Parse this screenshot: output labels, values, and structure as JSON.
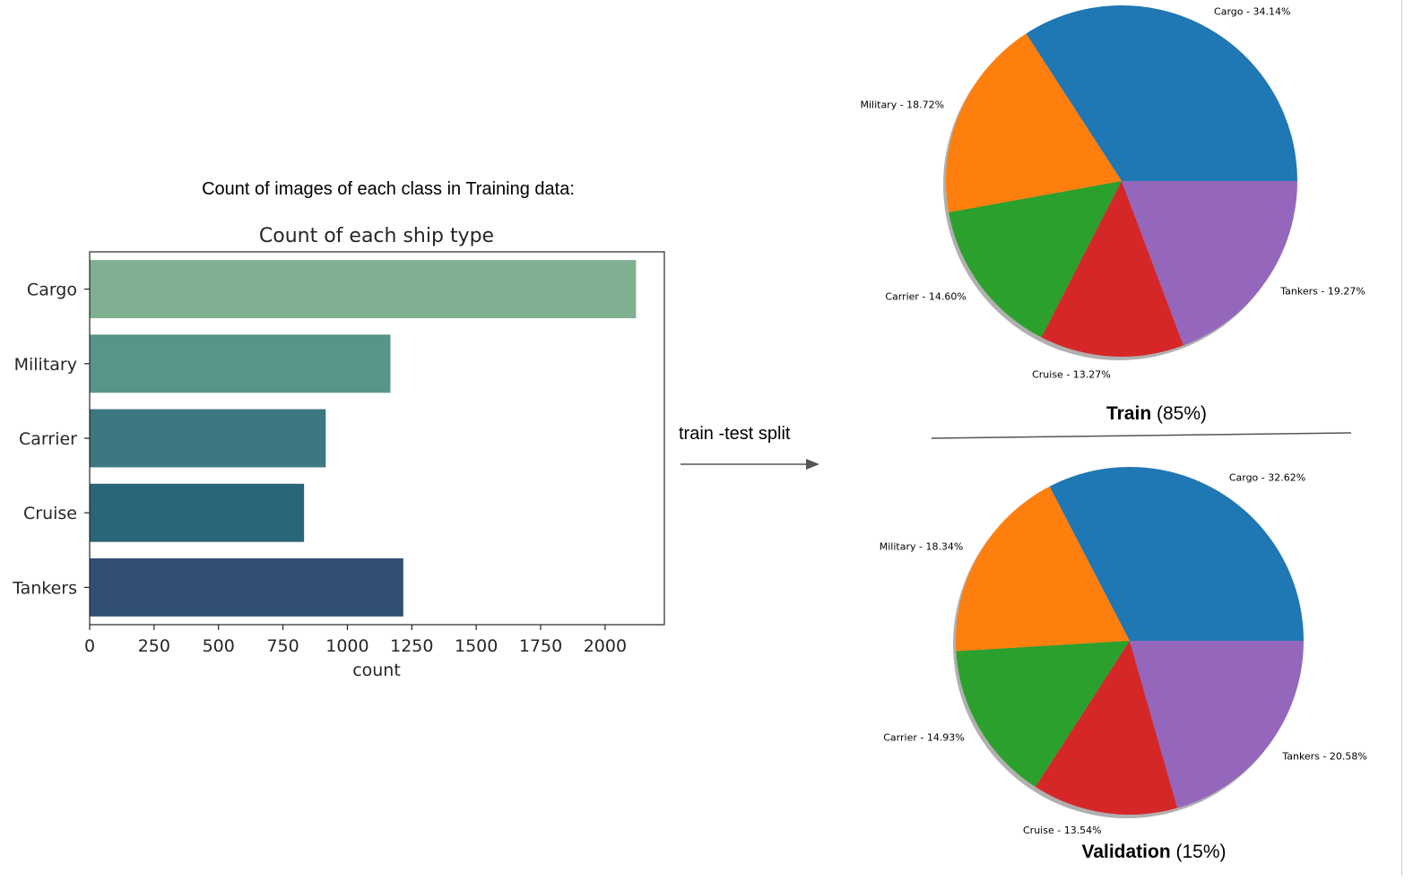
{
  "caption": "Count of images of each class in Training data:",
  "arrow_label": "train -test split",
  "colors": {
    "bars": [
      "#7fb092",
      "#589489",
      "#3d7880",
      "#2b6579",
      "#314f74"
    ],
    "pie": [
      "#1f77b4",
      "#ff7f0e",
      "#2ca02c",
      "#d62728",
      "#9467bd"
    ]
  },
  "chart_data": [
    {
      "type": "bar",
      "orientation": "horizontal",
      "title": "Count of each ship type",
      "xlabel": "count",
      "ylabel": "",
      "categories": [
        "Cargo",
        "Military",
        "Carrier",
        "Cruise",
        "Tankers"
      ],
      "values": [
        2120,
        1167,
        916,
        832,
        1217
      ],
      "xlim": [
        0,
        2230
      ],
      "xticks": [
        "0",
        "250",
        "500",
        "750",
        "1000",
        "1250",
        "1500",
        "1750",
        "2000"
      ],
      "grid": false
    },
    {
      "type": "pie",
      "caption_bold": "Train",
      "caption_rest": " (85%)",
      "labels": [
        "Cargo - 34.14%",
        "Military - 18.72%",
        "Carrier - 14.60%",
        "Cruise - 13.27%",
        "Tankers - 19.27%"
      ],
      "values": [
        34.14,
        18.72,
        14.6,
        13.27,
        19.27
      ]
    },
    {
      "type": "pie",
      "caption_bold": "Validation",
      "caption_rest": " (15%)",
      "labels": [
        "Cargo - 32.62%",
        "Military - 18.34%",
        "Carrier - 14.93%",
        "Cruise - 13.54%",
        "Tankers - 20.58%"
      ],
      "values": [
        32.62,
        18.34,
        14.93,
        13.54,
        20.58
      ]
    }
  ]
}
